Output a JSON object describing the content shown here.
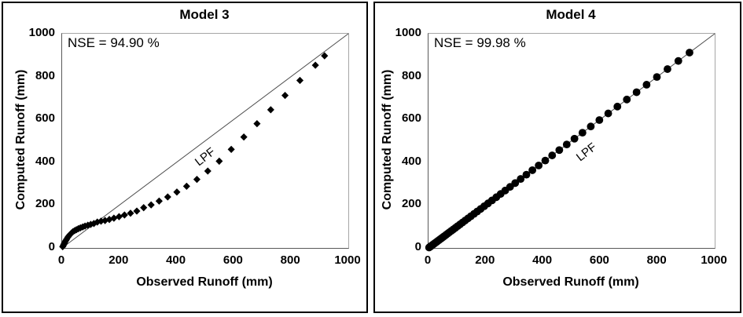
{
  "figure": {
    "background": "#ffffff",
    "colors": {
      "text": "#000000",
      "panel_border": "#000000",
      "plot_border_light": "#a6a6a6",
      "plot_border_dark": "#595959"
    }
  },
  "chart_data": [
    {
      "type": "scatter",
      "title": "Model 3",
      "annotation": "NSE = 94.90 %",
      "xlabel": "Observed Runoff (mm)",
      "ylabel": "Computed Runoff (mm)",
      "xlim": [
        0,
        1000
      ],
      "ylim": [
        0,
        1000
      ],
      "xticks": [
        0,
        200,
        400,
        600,
        800,
        1000
      ],
      "yticks": [
        0,
        200,
        400,
        600,
        800,
        1000
      ],
      "grid": false,
      "legend": "none",
      "marker": "diamond",
      "marker_color": "#000000",
      "line_label": "LPF",
      "line_label_anchor": [
        500,
        425
      ],
      "reference_line": {
        "from": [
          0,
          0
        ],
        "to": [
          1000,
          1000
        ],
        "color": "#4d4d4d"
      },
      "points": [
        [
          2,
          6
        ],
        [
          4,
          11
        ],
        [
          6,
          17
        ],
        [
          8,
          22
        ],
        [
          10,
          28
        ],
        [
          13,
          35
        ],
        [
          16,
          41
        ],
        [
          20,
          50
        ],
        [
          24,
          57
        ],
        [
          28,
          63
        ],
        [
          33,
          70
        ],
        [
          38,
          76
        ],
        [
          44,
          81
        ],
        [
          50,
          85
        ],
        [
          57,
          90
        ],
        [
          64,
          94
        ],
        [
          72,
          98
        ],
        [
          80,
          102
        ],
        [
          90,
          106
        ],
        [
          100,
          110
        ],
        [
          111,
          114
        ],
        [
          123,
          121
        ],
        [
          136,
          125
        ],
        [
          150,
          128
        ],
        [
          165,
          133
        ],
        [
          181,
          139
        ],
        [
          199,
          146
        ],
        [
          218,
          154
        ],
        [
          239,
          162
        ],
        [
          261,
          172
        ],
        [
          285,
          188
        ],
        [
          311,
          201
        ],
        [
          339,
          219
        ],
        [
          369,
          238
        ],
        [
          401,
          261
        ],
        [
          435,
          288
        ],
        [
          471,
          320
        ],
        [
          509,
          359
        ],
        [
          549,
          405
        ],
        [
          591,
          460
        ],
        [
          635,
          518
        ],
        [
          681,
          580
        ],
        [
          729,
          645
        ],
        [
          779,
          712
        ],
        [
          831,
          782
        ],
        [
          885,
          853
        ],
        [
          917,
          897
        ]
      ]
    },
    {
      "type": "scatter",
      "title": "Model 4",
      "annotation": "NSE = 99.98 %",
      "xlabel": "Observed Runoff (mm)",
      "ylabel": "Computed Runoff (mm)",
      "xlim": [
        0,
        1000
      ],
      "ylim": [
        0,
        1000
      ],
      "xticks": [
        0,
        200,
        400,
        600,
        800,
        1000
      ],
      "yticks": [
        0,
        200,
        400,
        600,
        800,
        1000
      ],
      "grid": false,
      "legend": "none",
      "marker": "circle",
      "marker_color": "#000000",
      "line_label": "LPF",
      "line_label_anchor": [
        553,
        448
      ],
      "reference_line": {
        "from": [
          0,
          0
        ],
        "to": [
          1000,
          1000
        ],
        "color": "#4d4d4d"
      },
      "points": [
        [
          2,
          2
        ],
        [
          4,
          4
        ],
        [
          6,
          6
        ],
        [
          8,
          8
        ],
        [
          10,
          10
        ],
        [
          12,
          12
        ],
        [
          15,
          15
        ],
        [
          18,
          18
        ],
        [
          21,
          21
        ],
        [
          24,
          24
        ],
        [
          28,
          28
        ],
        [
          32,
          32
        ],
        [
          36,
          36
        ],
        [
          40,
          40
        ],
        [
          45,
          45
        ],
        [
          50,
          50
        ],
        [
          55,
          55
        ],
        [
          61,
          61
        ],
        [
          67,
          67
        ],
        [
          73,
          73
        ],
        [
          80,
          80
        ],
        [
          87,
          87
        ],
        [
          94,
          94
        ],
        [
          102,
          102
        ],
        [
          110,
          110
        ],
        [
          119,
          119
        ],
        [
          128,
          128
        ],
        [
          138,
          138
        ],
        [
          148,
          148
        ],
        [
          159,
          159
        ],
        [
          170,
          170
        ],
        [
          182,
          182
        ],
        [
          195,
          195
        ],
        [
          208,
          208
        ],
        [
          222,
          222
        ],
        [
          237,
          237
        ],
        [
          252,
          252
        ],
        [
          268,
          268
        ],
        [
          285,
          285
        ],
        [
          303,
          303
        ],
        [
          322,
          322
        ],
        [
          342,
          342
        ],
        [
          363,
          363
        ],
        [
          385,
          385
        ],
        [
          408,
          408
        ],
        [
          432,
          432
        ],
        [
          457,
          457
        ],
        [
          483,
          483
        ],
        [
          510,
          510
        ],
        [
          538,
          538
        ],
        [
          567,
          567
        ],
        [
          597,
          597
        ],
        [
          628,
          628
        ],
        [
          660,
          660
        ],
        [
          693,
          693
        ],
        [
          727,
          727
        ],
        [
          762,
          762
        ],
        [
          798,
          798
        ],
        [
          835,
          835
        ],
        [
          873,
          873
        ],
        [
          912,
          912
        ]
      ]
    }
  ]
}
